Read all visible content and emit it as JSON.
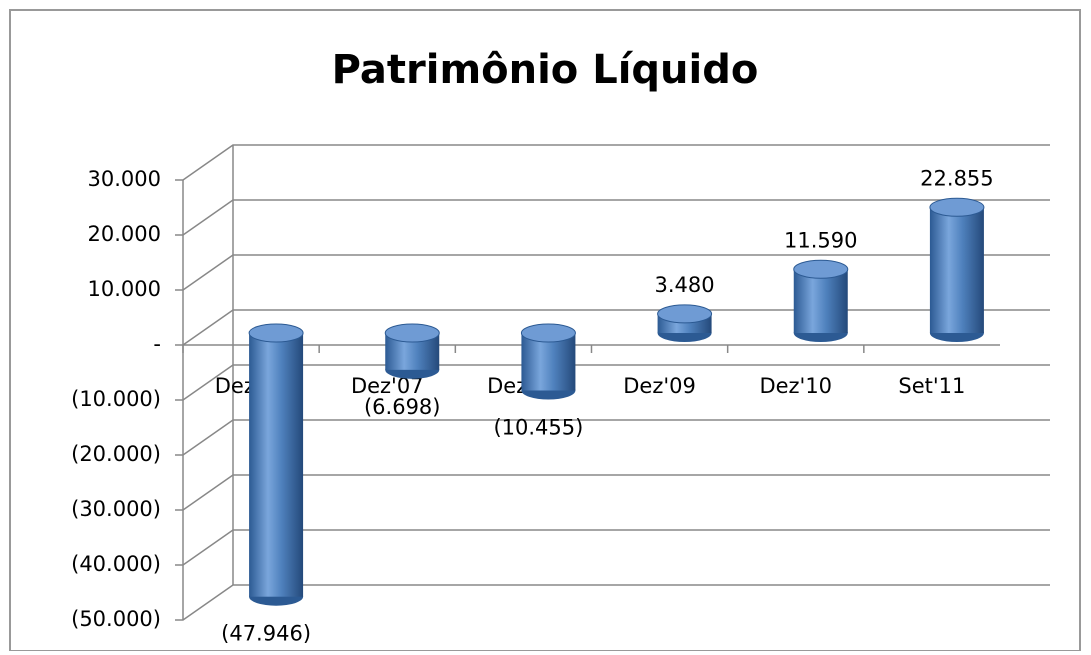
{
  "chart_data": {
    "type": "bar3d",
    "title": "Patrimônio Líquido",
    "categories": [
      "Dez'06",
      "Dez'07",
      "Dez'08",
      "Dez'09",
      "Dez'10",
      "Set'11"
    ],
    "values": [
      -47946,
      -6698,
      -10455,
      3480,
      11590,
      22855
    ],
    "value_labels": [
      "(47.946)",
      "(6.698)",
      "(10.455)",
      "3.480",
      "11.590",
      "22.855"
    ],
    "color": "#4f81bd",
    "ylim": [
      -50000,
      30000
    ],
    "yticks": [
      {
        "value": -50000,
        "label": "(50.000)"
      },
      {
        "value": -40000,
        "label": "(40.000)"
      },
      {
        "value": -30000,
        "label": "(30.000)"
      },
      {
        "value": -20000,
        "label": "(20.000)"
      },
      {
        "value": -10000,
        "label": "(10.000)"
      },
      {
        "value": 0,
        "label": "-"
      },
      {
        "value": 10000,
        "label": "10.000"
      },
      {
        "value": 20000,
        "label": "20.000"
      },
      {
        "value": 30000,
        "label": "30.000"
      }
    ],
    "grid": true
  }
}
